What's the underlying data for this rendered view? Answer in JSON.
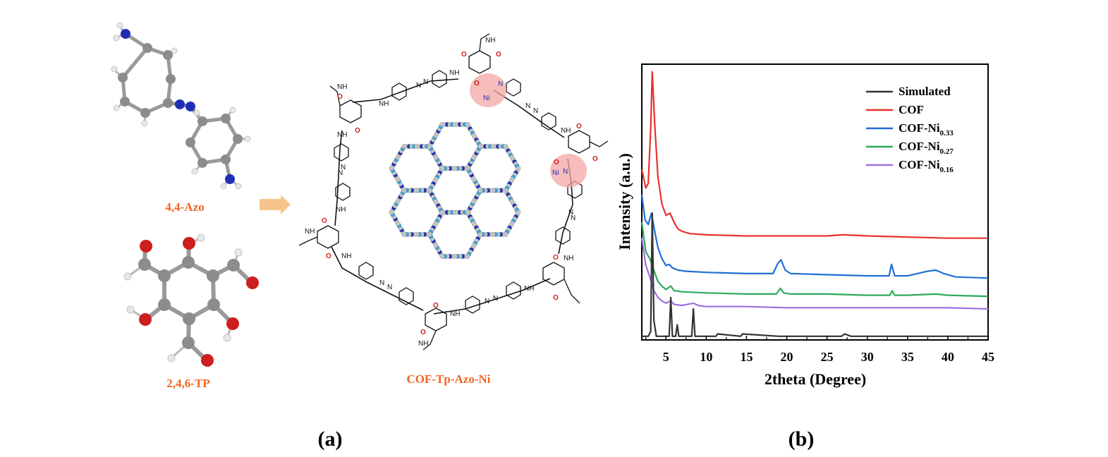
{
  "panel_a": {
    "label": "(a)",
    "molecule1_label": "4,4-Azo",
    "molecule2_label": "2,4,6-TP",
    "product_label": "COF-Tp-Azo-Ni",
    "atom_colors": {
      "carbon": "#8c8c8c",
      "nitrogen": "#1f2fb5",
      "oxygen": "#cc1f1f",
      "hydrogen": "#e6e6e6"
    },
    "highlight_color": "#f4a6a6",
    "label_color": "#f26522"
  },
  "panel_b": {
    "label": "(b)"
  },
  "chart_data": {
    "type": "line",
    "xlabel": "2theta (Degree)",
    "ylabel": "Intensity (a.u.)",
    "xlim": [
      2,
      45
    ],
    "xticks": [
      5,
      10,
      15,
      20,
      25,
      30,
      35,
      40,
      45
    ],
    "yticks_shown": false,
    "legend_position": "top-right",
    "series": [
      {
        "name": "Simulated",
        "color": "#333333",
        "label_base": "Simulated",
        "label_sub": "",
        "x": [
          2,
          2.8,
          3.1,
          3.3,
          3.5,
          3.8,
          4.5,
          5.4,
          5.6,
          5.8,
          6.2,
          6.4,
          6.6,
          8.2,
          8.4,
          8.6,
          11.2,
          11.4,
          14.3,
          14.5,
          19.0,
          26.8,
          27.2,
          28.0,
          45
        ],
        "y": [
          1,
          1,
          3,
          55,
          8,
          1,
          1,
          1,
          18,
          1,
          1,
          6,
          1,
          1,
          13,
          1,
          1,
          2,
          1,
          2,
          1,
          1,
          2,
          1,
          1
        ]
      },
      {
        "name": "COF",
        "color": "#e8322d",
        "label_base": "COF",
        "label_sub": "",
        "x": [
          2,
          2.5,
          2.8,
          3.1,
          3.3,
          3.6,
          4.0,
          4.5,
          5.0,
          5.5,
          6.0,
          6.5,
          7.0,
          8.0,
          10,
          15,
          20,
          25,
          27,
          30,
          35,
          40,
          45
        ],
        "y": [
          74,
          66,
          68,
          92,
          117,
          94,
          71,
          59,
          54,
          55,
          51,
          48,
          47,
          46,
          45.5,
          45,
          45,
          45,
          45.5,
          45,
          44.5,
          44,
          44
        ]
      },
      {
        "name": "COF-Ni0.33",
        "color": "#1f6fd6",
        "label_base": "COF-Ni",
        "label_sub": "0.33",
        "x": [
          2,
          2.4,
          2.8,
          3.2,
          3.6,
          4.0,
          4.5,
          5.0,
          5.4,
          5.8,
          6.5,
          7.5,
          10,
          15,
          18.3,
          18.9,
          19.3,
          19.8,
          20.5,
          25,
          30,
          32.7,
          33.0,
          33.4,
          35,
          37.5,
          38.5,
          39.5,
          41,
          45
        ],
        "y": [
          63,
          52,
          50,
          55,
          47,
          40,
          35,
          32,
          32.5,
          31,
          30,
          29.5,
          29,
          28.5,
          28.5,
          33,
          34.5,
          30,
          28.5,
          28,
          27.5,
          27.5,
          32.5,
          27.5,
          27.5,
          29.5,
          30,
          28.5,
          27,
          26.5
        ]
      },
      {
        "name": "COF-Ni0.27",
        "color": "#2eaa5c",
        "label_base": "COF-Ni",
        "label_sub": "0.27",
        "x": [
          2,
          2.5,
          3.0,
          3.5,
          4.0,
          4.5,
          5.0,
          5.6,
          6.0,
          7.0,
          10,
          15,
          18.7,
          19.2,
          19.6,
          20.5,
          25,
          30,
          32.8,
          33.1,
          33.4,
          35,
          38.5,
          40,
          45
        ],
        "y": [
          51,
          38,
          35,
          30,
          25,
          23,
          21.5,
          23,
          21,
          20.5,
          20,
          19.5,
          19.5,
          22,
          20,
          19.5,
          19.5,
          19,
          19,
          21,
          19,
          19,
          19.5,
          19,
          18.5
        ]
      },
      {
        "name": "COF-Ni0.16",
        "color": "#a06ee0",
        "label_base": "COF-Ni",
        "label_sub": "0.16",
        "x": [
          2,
          2.5,
          3.0,
          3.5,
          4.0,
          4.5,
          5.0,
          5.6,
          6.0,
          7.0,
          8.4,
          9.0,
          10,
          15,
          20,
          25,
          30,
          35,
          40,
          45
        ],
        "y": [
          44,
          32,
          27,
          21,
          18,
          16.5,
          15.5,
          16.5,
          15,
          14.5,
          15.5,
          14.5,
          14,
          14,
          13.5,
          13.5,
          13.5,
          13.5,
          13.5,
          13
        ]
      }
    ]
  }
}
